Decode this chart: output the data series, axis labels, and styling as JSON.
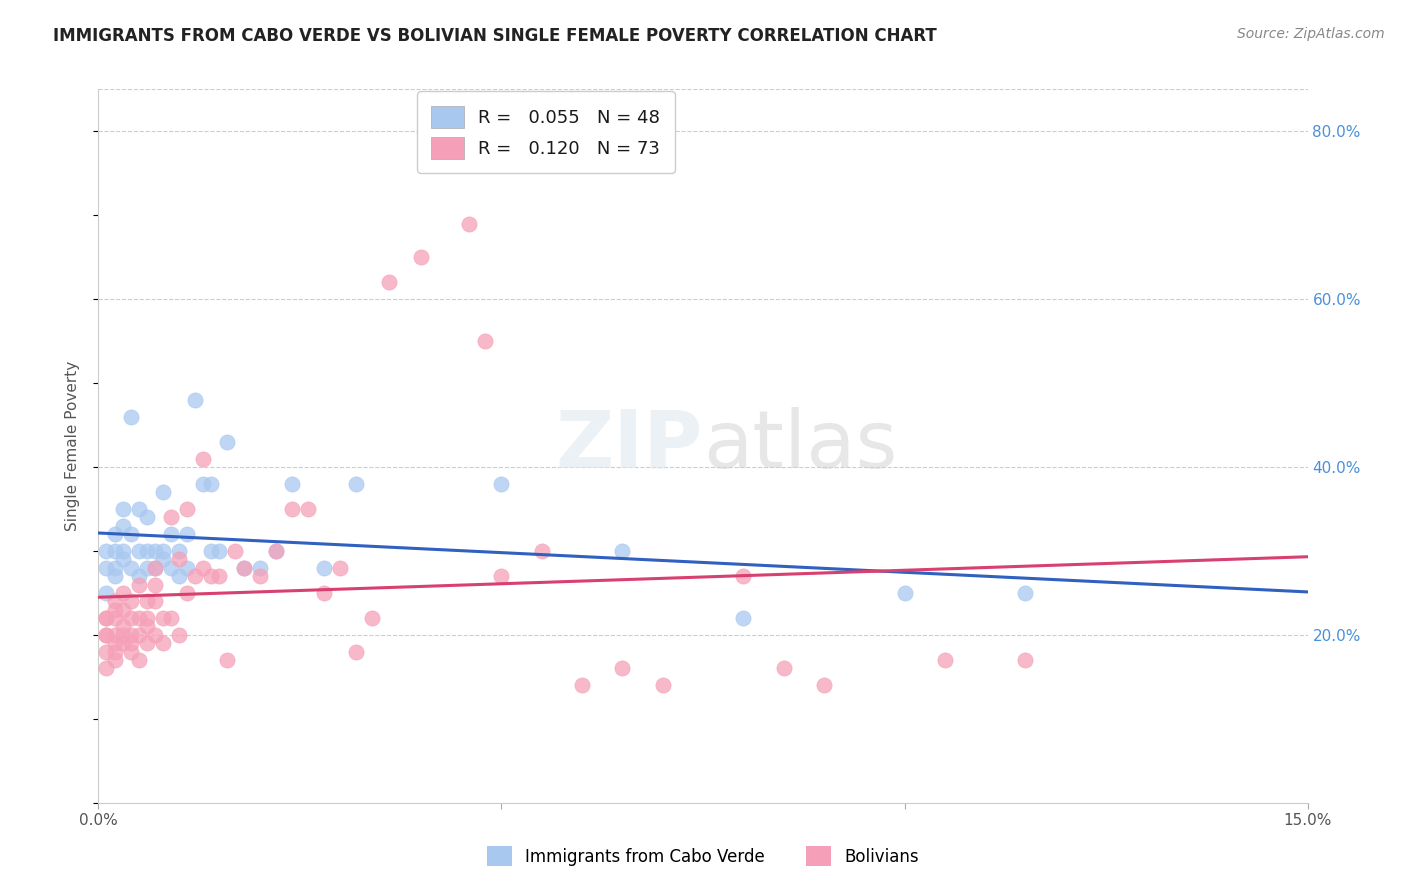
{
  "title": "IMMIGRANTS FROM CABO VERDE VS BOLIVIAN SINGLE FEMALE POVERTY CORRELATION CHART",
  "source": "Source: ZipAtlas.com",
  "ylabel": "Single Female Poverty",
  "xlim": [
    0.0,
    0.15
  ],
  "ylim": [
    0.0,
    0.85
  ],
  "yticks_right": [
    0.2,
    0.4,
    0.6,
    0.8
  ],
  "series_blue_label": "Immigrants from Cabo Verde",
  "series_pink_label": "Bolivians",
  "blue_R": "0.055",
  "blue_N": 48,
  "pink_R": "0.120",
  "pink_N": 73,
  "blue_dot_color": "#a8c8f0",
  "pink_dot_color": "#f5a0b8",
  "blue_line_color": "#3060c0",
  "pink_line_color": "#d84070",
  "blue_x": [
    0.001,
    0.001,
    0.001,
    0.002,
    0.002,
    0.002,
    0.002,
    0.003,
    0.003,
    0.003,
    0.003,
    0.004,
    0.004,
    0.004,
    0.005,
    0.005,
    0.005,
    0.006,
    0.006,
    0.006,
    0.007,
    0.007,
    0.008,
    0.008,
    0.008,
    0.009,
    0.009,
    0.01,
    0.01,
    0.011,
    0.011,
    0.012,
    0.013,
    0.014,
    0.014,
    0.015,
    0.016,
    0.018,
    0.02,
    0.022,
    0.024,
    0.028,
    0.032,
    0.05,
    0.065,
    0.08,
    0.1,
    0.115
  ],
  "blue_y": [
    0.28,
    0.3,
    0.25,
    0.28,
    0.32,
    0.3,
    0.27,
    0.3,
    0.29,
    0.35,
    0.33,
    0.28,
    0.32,
    0.46,
    0.27,
    0.35,
    0.3,
    0.28,
    0.3,
    0.34,
    0.3,
    0.28,
    0.3,
    0.29,
    0.37,
    0.28,
    0.32,
    0.27,
    0.3,
    0.28,
    0.32,
    0.48,
    0.38,
    0.3,
    0.38,
    0.3,
    0.43,
    0.28,
    0.28,
    0.3,
    0.38,
    0.28,
    0.38,
    0.38,
    0.3,
    0.22,
    0.25,
    0.25
  ],
  "pink_x": [
    0.001,
    0.001,
    0.001,
    0.001,
    0.001,
    0.001,
    0.002,
    0.002,
    0.002,
    0.002,
    0.002,
    0.002,
    0.002,
    0.003,
    0.003,
    0.003,
    0.003,
    0.003,
    0.004,
    0.004,
    0.004,
    0.004,
    0.004,
    0.005,
    0.005,
    0.005,
    0.005,
    0.006,
    0.006,
    0.006,
    0.006,
    0.007,
    0.007,
    0.007,
    0.007,
    0.008,
    0.008,
    0.009,
    0.009,
    0.01,
    0.01,
    0.011,
    0.011,
    0.012,
    0.013,
    0.013,
    0.014,
    0.015,
    0.016,
    0.017,
    0.018,
    0.02,
    0.022,
    0.024,
    0.026,
    0.028,
    0.03,
    0.032,
    0.034,
    0.036,
    0.04,
    0.046,
    0.048,
    0.05,
    0.055,
    0.06,
    0.065,
    0.07,
    0.08,
    0.085,
    0.09,
    0.105,
    0.115
  ],
  "pink_y": [
    0.2,
    0.22,
    0.2,
    0.18,
    0.22,
    0.16,
    0.2,
    0.24,
    0.18,
    0.22,
    0.19,
    0.23,
    0.17,
    0.21,
    0.19,
    0.23,
    0.2,
    0.25,
    0.2,
    0.24,
    0.22,
    0.19,
    0.18,
    0.2,
    0.22,
    0.17,
    0.26,
    0.22,
    0.24,
    0.19,
    0.21,
    0.26,
    0.24,
    0.2,
    0.28,
    0.22,
    0.19,
    0.22,
    0.34,
    0.2,
    0.29,
    0.25,
    0.35,
    0.27,
    0.41,
    0.28,
    0.27,
    0.27,
    0.17,
    0.3,
    0.28,
    0.27,
    0.3,
    0.35,
    0.35,
    0.25,
    0.28,
    0.18,
    0.22,
    0.62,
    0.65,
    0.69,
    0.55,
    0.27,
    0.3,
    0.14,
    0.16,
    0.14,
    0.27,
    0.16,
    0.14,
    0.17,
    0.17
  ]
}
